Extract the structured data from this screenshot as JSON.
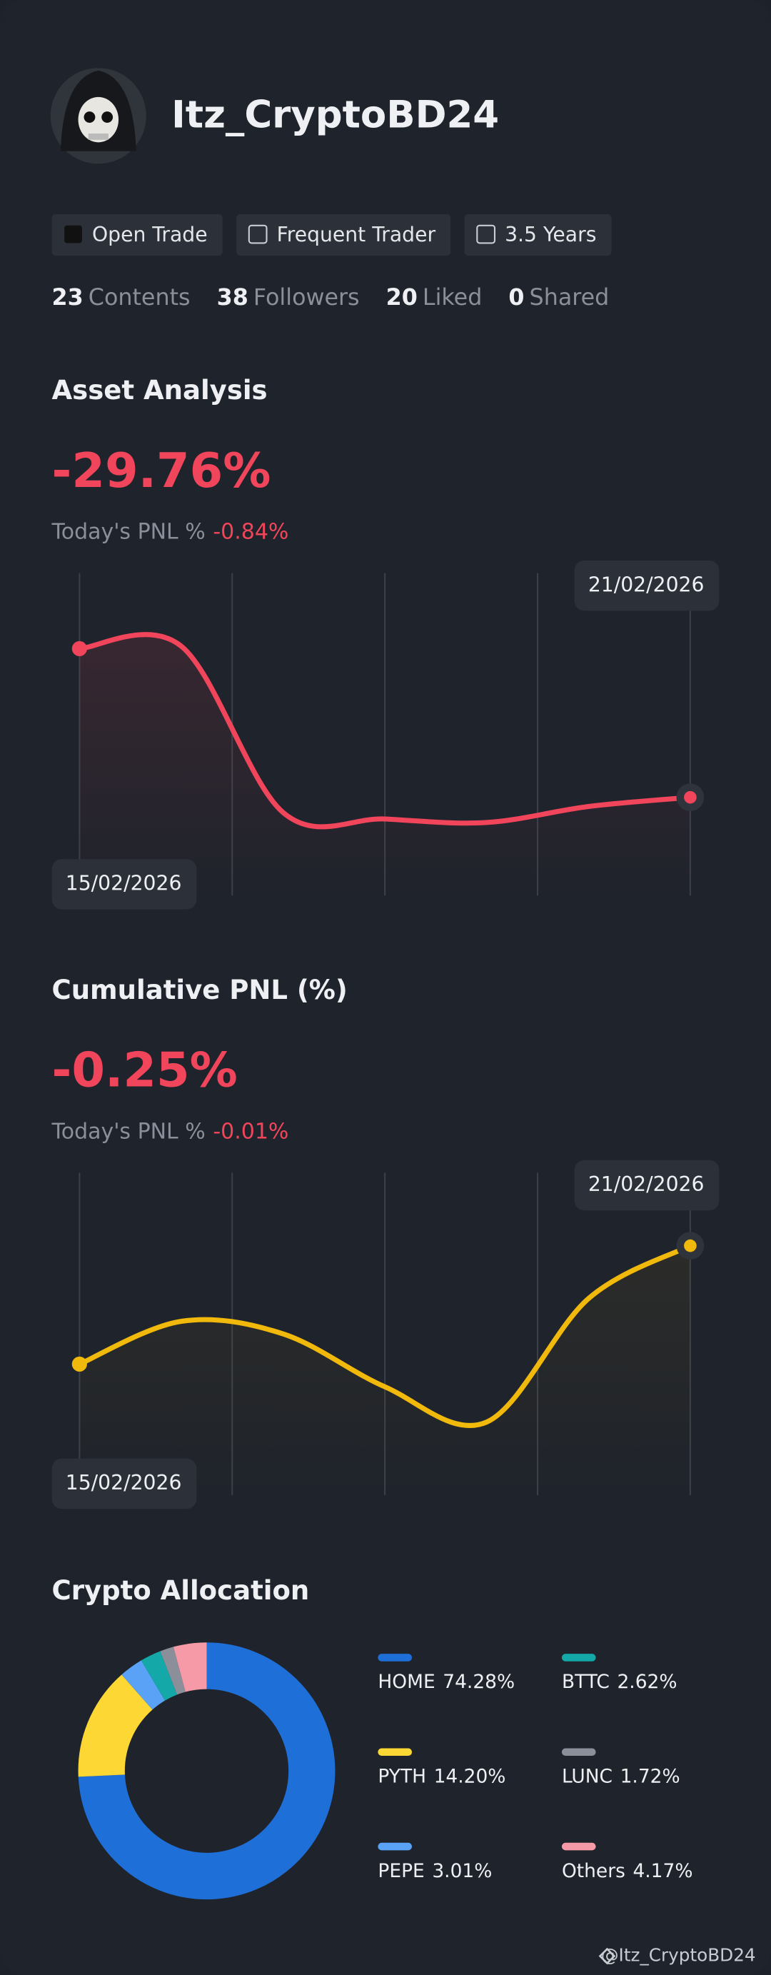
{
  "profile": {
    "name": "Itz_CryptoBD24",
    "badges": [
      "Open Trade",
      "Frequent Trader",
      "3.5 Years"
    ],
    "stats": [
      {
        "value": 23,
        "label": "Contents"
      },
      {
        "value": 38,
        "label": "Followers"
      },
      {
        "value": 20,
        "label": "Liked"
      },
      {
        "value": 0,
        "label": "Shared"
      }
    ]
  },
  "chart_data": [
    {
      "type": "line",
      "title": "Asset Analysis",
      "headline": "-29.76%",
      "today_label": "Today's PNL %",
      "today_value": "-0.84%",
      "categories": [
        "15/02/2026",
        null,
        null,
        null,
        null,
        null,
        "21/02/2026"
      ],
      "series": [
        {
          "name": "Asset Analysis",
          "color": "#f0455a",
          "values": [
            0,
            0.5,
            -32.8,
            -34.1,
            -34.8,
            -31.6,
            -29.76
          ]
        }
      ]
    },
    {
      "type": "line",
      "title": "Cumulative PNL (%)",
      "headline": "-0.25%",
      "today_label": "Today's PNL %",
      "today_value": "-0.01%",
      "categories": [
        "15/02/2026",
        null,
        null,
        null,
        null,
        null,
        "21/02/2026"
      ],
      "series": [
        {
          "name": "Cumulative PNL (%)",
          "color": "#f0b90b",
          "values": [
            -0.72,
            -0.55,
            -0.6,
            -0.81,
            -0.95,
            -0.46,
            -0.25
          ]
        }
      ]
    },
    {
      "type": "pie",
      "title": "Crypto Allocation",
      "categories": [
        "HOME",
        "PYTH",
        "PEPE",
        "BTTC",
        "LUNC",
        "Others"
      ],
      "values": [
        74.28,
        14.2,
        3.01,
        2.62,
        1.72,
        4.17
      ],
      "value_labels": [
        "74.28%",
        "14.20%",
        "3.01%",
        "2.62%",
        "1.72%",
        "4.17%"
      ],
      "colors": [
        "#1f6fd8",
        "#fdd835",
        "#5aa2f5",
        "#14a8a8",
        "#8a8f99",
        "#f59aa6"
      ]
    }
  ],
  "footer": "@Itz_CryptoBD24"
}
